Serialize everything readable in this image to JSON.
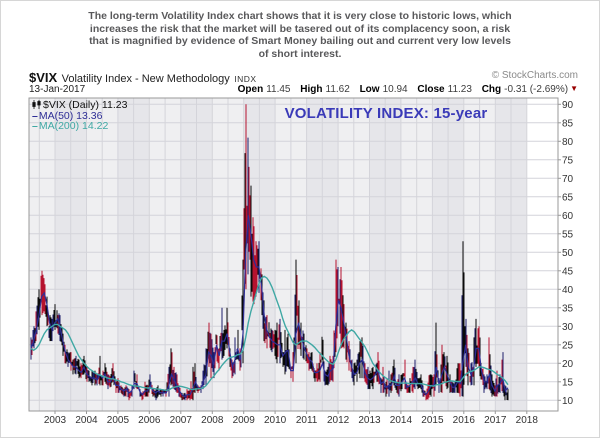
{
  "annotation": {
    "line1": "The long-term Volatility Index chart shows that it is very close to historic lows, which",
    "line2": "increases the risk that the market will be tasered out of its complacency soon, a risk",
    "line3": "that is magnified by evidence of Smart Money bailing out and current very low levels",
    "line4": "of short interest."
  },
  "header": {
    "symbol": "$VIX",
    "name": "Volatility Index - New Methodology",
    "exchange": "INDX",
    "copyright": "© StockCharts.com",
    "date": "13-Jan-2017",
    "quote": {
      "open_label": "Open",
      "open": "11.45",
      "high_label": "High",
      "high": "11.62",
      "low_label": "Low",
      "low": "10.94",
      "close_label": "Close",
      "close": "11.23",
      "chg_label": "Chg",
      "chg": "-0.31 (-2.69%)"
    }
  },
  "legend": {
    "vix_label": "$VIX (Daily) 11.23",
    "ma50_label": "MA(50) 13.36",
    "ma200_label": "MA(200) 14.22"
  },
  "chart_title": "VOLATILITY INDEX: 15-year",
  "colors": {
    "bar_black": "#0a0a0a",
    "bar_red": "#b5122e",
    "bar_navy": "#1d1d6b",
    "ma50": "#2e2e96",
    "ma200": "#3fa8a4",
    "grid": "#d4d4da",
    "band_light": "#efeff1",
    "band_dark": "#e6e6ea",
    "border": "#999999",
    "tick_text": "#333333"
  },
  "chart_data": {
    "type": "line",
    "style": "daily-ohlc-bar-chart-with-moving-averages",
    "title": "VOLATILITY INDEX: 15-year",
    "x_start": "2002-01",
    "x_end": "2017-01",
    "points_per_year": 12,
    "ylim": [
      7,
      92
    ],
    "grid": true,
    "y_ticks": [
      10,
      15,
      20,
      25,
      30,
      35,
      40,
      45,
      50,
      55,
      60,
      65,
      70,
      75,
      80,
      85,
      90
    ],
    "x_tick_years": [
      2003,
      2004,
      2005,
      2006,
      2007,
      2008,
      2009,
      2010,
      2011,
      2012,
      2013,
      2014,
      2015,
      2016,
      2017,
      2018
    ],
    "last_values": {
      "vix_close": 11.23,
      "ma50": 13.36,
      "ma200": 14.22
    },
    "series": [
      {
        "name": "$VIX monthly high",
        "values": [
          27,
          30,
          34,
          40,
          45,
          43,
          38,
          33,
          32,
          36,
          35,
          33,
          28,
          25,
          23,
          23,
          21,
          22,
          21,
          20,
          22,
          19,
          18,
          18,
          18,
          17,
          22,
          18,
          20,
          17,
          17,
          20,
          15,
          16,
          14,
          13,
          14,
          13,
          14,
          18,
          17,
          13,
          12,
          15,
          14,
          17,
          13,
          13,
          14,
          13,
          13,
          13,
          19,
          24,
          19,
          17,
          14,
          12,
          12,
          13,
          13,
          19,
          20,
          14,
          14,
          18,
          24,
          31,
          28,
          23,
          31,
          24,
          35,
          29,
          35,
          24,
          21,
          27,
          29,
          24,
          48,
          90,
          81,
          68,
          57,
          53,
          53,
          44,
          37,
          33,
          31,
          29,
          29,
          31,
          32,
          23,
          29,
          28,
          19,
          23,
          48,
          37,
          31,
          28,
          24,
          23,
          23,
          18,
          20,
          23,
          31,
          18,
          19,
          22,
          22,
          48,
          46,
          46,
          36,
          31,
          26,
          21,
          20,
          21,
          26,
          27,
          20,
          19,
          18,
          19,
          19,
          23,
          16,
          19,
          15,
          18,
          17,
          21,
          15,
          17,
          17,
          21,
          14,
          16,
          19,
          21,
          16,
          17,
          14,
          12,
          17,
          17,
          17,
          31,
          16,
          25,
          23,
          22,
          17,
          15,
          15,
          20,
          20,
          53,
          32,
          24,
          20,
          27,
          32,
          30,
          23,
          17,
          17,
          27,
          17,
          14,
          18,
          17,
          23,
          14,
          13
        ]
      },
      {
        "name": "$VIX monthly low",
        "values": [
          21,
          24,
          26,
          29,
          33,
          34,
          30,
          26,
          26,
          29,
          28,
          26,
          22,
          20,
          19,
          18,
          17,
          17,
          16,
          16,
          17,
          15,
          15,
          14,
          14,
          14,
          14,
          14,
          15,
          13,
          13,
          15,
          12,
          12,
          12,
          11,
          11,
          10,
          11,
          13,
          13,
          11,
          10,
          11,
          11,
          13,
          11,
          10,
          11,
          11,
          11,
          11,
          11,
          14,
          13,
          12,
          11,
          10,
          10,
          10,
          10,
          10,
          12,
          12,
          12,
          13,
          14,
          19,
          16,
          16,
          21,
          18,
          21,
          22,
          24,
          19,
          16,
          17,
          21,
          18,
          20,
          40,
          44,
          38,
          36,
          38,
          39,
          33,
          26,
          24,
          23,
          23,
          22,
          20,
          20,
          19,
          17,
          19,
          16,
          15,
          20,
          25,
          22,
          21,
          20,
          18,
          18,
          15,
          15,
          15,
          15,
          14,
          14,
          15,
          15,
          23,
          30,
          24,
          24,
          21,
          18,
          16,
          14,
          15,
          16,
          16,
          15,
          13,
          13,
          13,
          15,
          15,
          12,
          12,
          11,
          11,
          12,
          14,
          12,
          11,
          13,
          13,
          12,
          12,
          12,
          13,
          13,
          13,
          11,
          10,
          10,
          11,
          11,
          14,
          12,
          12,
          15,
          13,
          12,
          12,
          12,
          12,
          11,
          11,
          19,
          14,
          14,
          14,
          19,
          19,
          13,
          12,
          13,
          13,
          11,
          11,
          11,
          12,
          12,
          10,
          10
        ]
      },
      {
        "name": "MA(50)",
        "values": [
          24,
          26,
          29,
          33,
          38,
          39,
          36,
          31,
          29,
          31,
          32,
          30,
          26,
          23,
          21,
          20,
          19,
          19,
          18,
          17.5,
          19,
          17,
          16.5,
          16,
          16,
          15.5,
          17,
          16,
          17,
          15,
          15,
          16.5,
          14,
          14,
          13,
          12.5,
          13,
          12,
          12.5,
          14.5,
          14.5,
          12.5,
          11.5,
          12.5,
          12.5,
          14,
          12.5,
          12,
          12.5,
          12,
          12,
          12,
          14,
          17,
          15.5,
          14,
          12.5,
          11.5,
          11,
          11.5,
          11.5,
          13,
          15,
          13.5,
          13,
          15,
          17,
          23,
          22,
          19.5,
          25,
          22,
          26,
          26,
          28,
          23,
          19,
          21,
          24,
          21,
          28,
          50,
          60,
          55,
          48,
          46,
          46,
          41,
          33,
          29,
          27,
          26,
          25.5,
          25,
          25,
          22,
          23,
          23.5,
          18,
          18,
          28,
          31,
          27,
          24.5,
          22.5,
          21,
          20.5,
          17.5,
          17.5,
          18,
          20,
          17,
          16.5,
          18,
          18.5,
          30,
          37,
          35,
          31,
          27,
          22,
          19,
          17,
          17.5,
          20,
          21,
          17.5,
          16,
          15.5,
          16,
          17,
          18,
          14.5,
          15,
          13.5,
          14,
          14,
          16.5,
          14,
          14,
          15,
          16,
          13.5,
          14,
          15,
          16,
          14.5,
          14.5,
          12.5,
          11.5,
          12.5,
          14,
          14,
          19,
          14,
          17,
          19,
          17,
          15,
          13.5,
          13.5,
          15,
          14.5,
          20,
          25,
          19,
          17,
          18.5,
          24,
          24,
          18,
          15,
          15,
          17,
          14,
          12.5,
          14,
          14.5,
          16,
          12.5,
          13.4
        ]
      },
      {
        "name": "MA(200)",
        "values": [
          24,
          23.5,
          24,
          25,
          26.5,
          28,
          29,
          29.5,
          30,
          30.5,
          30.5,
          30,
          29.5,
          29,
          28,
          26.5,
          25,
          23.5,
          22,
          21,
          20,
          19.2,
          18.5,
          18,
          17.5,
          17,
          16.8,
          16.5,
          16.3,
          16,
          15.8,
          15.8,
          15.5,
          15.3,
          15,
          14.8,
          14.5,
          14.2,
          14,
          13.9,
          13.8,
          13.7,
          13.5,
          13.4,
          13.3,
          13.3,
          13.2,
          13.1,
          13,
          12.9,
          12.8,
          12.7,
          12.8,
          13.2,
          13.5,
          13.7,
          13.8,
          13.7,
          13.5,
          13.3,
          13,
          12.9,
          13,
          13.1,
          13.2,
          13.4,
          13.9,
          14.8,
          15.8,
          16.5,
          17.5,
          18.3,
          19.4,
          20.2,
          21,
          21.5,
          21.7,
          21.9,
          22.3,
          22.5,
          23.5,
          27,
          31,
          34,
          36.5,
          39,
          41.5,
          43,
          43.5,
          43,
          42,
          40.5,
          38.5,
          36.5,
          34.5,
          32,
          30,
          28.5,
          27,
          25.5,
          25,
          25.5,
          26,
          26,
          26,
          25.5,
          25,
          24.3,
          23.5,
          22.7,
          22,
          21.2,
          20.5,
          20,
          19.7,
          21,
          23,
          25,
          26.5,
          27.5,
          28.5,
          29,
          28.5,
          27.5,
          26.5,
          25.5,
          24.5,
          23,
          21.5,
          20,
          19,
          18,
          17.2,
          16.5,
          16,
          15.5,
          15.2,
          15,
          14.8,
          14.7,
          14.6,
          14.7,
          14.6,
          14.5,
          14.5,
          14.5,
          14.5,
          14.5,
          14.4,
          14.2,
          14,
          13.9,
          13.8,
          14.2,
          14.2,
          14.5,
          14.8,
          15,
          15.2,
          15.2,
          15.1,
          15.1,
          15.1,
          16,
          17,
          17.5,
          17.8,
          18,
          18.5,
          19,
          19,
          18.8,
          18.5,
          18.3,
          18,
          17.5,
          17,
          16.5,
          16,
          15.2,
          14.2
        ]
      }
    ]
  }
}
